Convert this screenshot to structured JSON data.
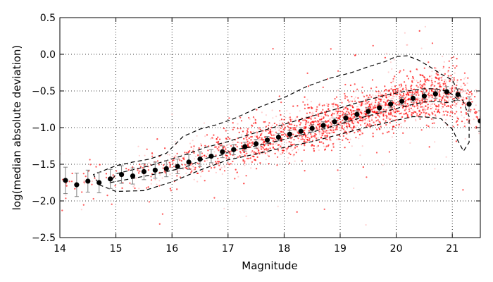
{
  "chart_data": {
    "type": "scatter",
    "title": "",
    "xlabel": "Magnitude",
    "ylabel": "log(median absolute deviation)",
    "xlim": [
      14,
      21.5
    ],
    "ylim": [
      -2.5,
      0.5
    ],
    "grid": true,
    "x_ticks": [
      14,
      15,
      16,
      17,
      18,
      19,
      20,
      21
    ],
    "y_ticks": [
      -2.5,
      -2.0,
      -1.5,
      -1.0,
      -0.5,
      0.0,
      0.5
    ],
    "x_tick_labels": [
      "14",
      "15",
      "16",
      "17",
      "18",
      "19",
      "20",
      "21"
    ],
    "y_tick_labels": [
      "−2.5",
      "−2.0",
      "−1.5",
      "−1.0",
      "−0.5",
      "0.0",
      "0.5"
    ],
    "colors": {
      "scatter": "#ff0000",
      "medians": "#000000",
      "errorbars": "#808080",
      "contours": "#000000"
    },
    "medians": {
      "x": [
        14.1,
        14.3,
        14.5,
        14.7,
        14.9,
        15.1,
        15.3,
        15.5,
        15.7,
        15.9,
        16.1,
        16.3,
        16.5,
        16.7,
        16.9,
        17.1,
        17.3,
        17.5,
        17.7,
        17.9,
        18.1,
        18.3,
        18.5,
        18.7,
        18.9,
        19.1,
        19.3,
        19.5,
        19.7,
        19.9,
        20.1,
        20.3,
        20.5,
        20.7,
        20.9,
        21.1,
        21.3,
        21.5
      ],
      "y": [
        -1.72,
        -1.78,
        -1.73,
        -1.75,
        -1.7,
        -1.64,
        -1.66,
        -1.6,
        -1.58,
        -1.56,
        -1.53,
        -1.47,
        -1.43,
        -1.39,
        -1.33,
        -1.3,
        -1.26,
        -1.22,
        -1.17,
        -1.13,
        -1.09,
        -1.05,
        -1.01,
        -0.97,
        -0.92,
        -0.87,
        -0.82,
        -0.78,
        -0.73,
        -0.68,
        -0.64,
        -0.6,
        -0.57,
        -0.54,
        -0.51,
        -0.55,
        -0.68,
        -0.91
      ],
      "err": [
        0.18,
        0.16,
        0.15,
        0.14,
        0.13,
        0.12,
        0.11,
        0.11,
        0.11,
        0.11,
        0.1,
        0.1,
        0.1,
        0.09,
        0.08,
        0.07,
        0.06,
        0.06,
        0.05,
        0.05,
        0.05,
        0.05,
        0.05,
        0.05,
        0.05,
        0.05,
        0.05,
        0.05,
        0.05,
        0.05,
        0.05,
        0.05,
        0.05,
        0.06,
        0.07,
        0.08,
        0.1,
        0.14
      ]
    },
    "contours": [
      {
        "name": "",
        "x": [
          14.9,
          15.6,
          16.2,
          16.6,
          16.9,
          17.1,
          17.3,
          17.5,
          17.8,
          18.2,
          18.6,
          19.0,
          19.4,
          19.8,
          20.2,
          20.5,
          20.7,
          20.9,
          21.0,
          21.1,
          21.0,
          20.9,
          20.7,
          20.5,
          20.2,
          19.8,
          19.4,
          19.0,
          18.6,
          18.2,
          17.8,
          17.4,
          17.0,
          16.6,
          16.2,
          15.6,
          15.0,
          14.9
        ],
        "y": [
          -1.75,
          -1.65,
          -1.55,
          -1.42,
          -1.37,
          -1.3,
          -1.28,
          -1.25,
          -1.2,
          -1.12,
          -1.04,
          -0.95,
          -0.86,
          -0.78,
          -0.7,
          -0.65,
          -0.64,
          -0.66,
          -0.64,
          -0.62,
          -0.55,
          -0.5,
          -0.47,
          -0.47,
          -0.5,
          -0.56,
          -0.64,
          -0.73,
          -0.82,
          -0.91,
          -1.0,
          -1.09,
          -1.19,
          -1.27,
          -1.38,
          -1.52,
          -1.63,
          -1.75
        ]
      },
      {
        "name": "",
        "x": [
          14.7,
          15.0,
          15.5,
          16.0,
          16.5,
          17.0,
          17.5,
          18.0,
          18.5,
          19.0,
          19.5,
          20.0,
          20.3,
          20.6,
          20.8,
          21.0,
          21.1,
          21.2,
          21.3,
          21.3,
          21.2,
          21.1,
          21.0,
          20.8,
          20.6,
          20.4,
          20.2,
          20.0,
          19.8,
          19.5,
          19.2,
          18.8,
          18.4,
          18.0,
          17.5,
          17.1,
          16.8,
          16.5,
          16.2,
          15.9,
          15.6,
          15.3,
          15.0,
          14.8,
          14.6,
          14.7
        ],
        "y": [
          -1.78,
          -1.87,
          -1.86,
          -1.74,
          -1.58,
          -1.44,
          -1.36,
          -1.27,
          -1.19,
          -1.09,
          -0.99,
          -0.9,
          -0.85,
          -0.86,
          -0.88,
          -1.02,
          -1.18,
          -1.32,
          -1.2,
          -0.85,
          -0.65,
          -0.5,
          -0.35,
          -0.27,
          -0.17,
          -0.08,
          -0.02,
          -0.03,
          -0.1,
          -0.17,
          -0.25,
          -0.33,
          -0.44,
          -0.59,
          -0.74,
          -0.88,
          -0.96,
          -1.02,
          -1.12,
          -1.35,
          -1.43,
          -1.47,
          -1.52,
          -1.58,
          -1.64,
          -1.78
        ]
      }
    ],
    "scatter_cloud": {
      "description_free": true,
      "centerline_x": [
        14.1,
        15.0,
        16.0,
        17.0,
        18.0,
        19.0,
        20.0,
        20.6,
        21.0,
        21.4
      ],
      "centerline_y": [
        -1.72,
        -1.68,
        -1.55,
        -1.31,
        -1.11,
        -0.89,
        -0.66,
        -0.56,
        -0.53,
        -0.8
      ],
      "spread": [
        0.18,
        0.16,
        0.16,
        0.15,
        0.15,
        0.15,
        0.16,
        0.18,
        0.2,
        0.22
      ],
      "density": [
        0.05,
        0.1,
        0.2,
        0.4,
        0.75,
        1.0,
        1.0,
        1.0,
        0.8,
        0.25
      ]
    }
  }
}
